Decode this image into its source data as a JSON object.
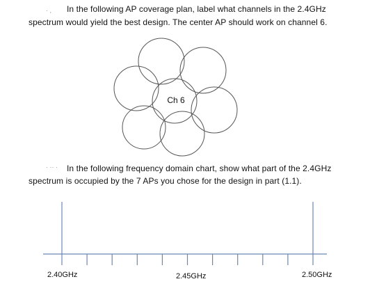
{
  "question1": {
    "marker": "·  ,",
    "line1": "In the following AP coverage plan, label what channels in the 2.4GHz",
    "line2": "spectrum would yield the best design.  The center AP should work on channel 6."
  },
  "coverage_plan": {
    "center_label": "Ch 6",
    "ap_count": 7
  },
  "question2": {
    "marker": "·  ·· ·",
    "line1": "In the following frequency domain chart, show what part of the 2.4GHz",
    "line2": "spectrum is occupied by the 7 APs you chose for the design in part (1.1)."
  },
  "frequency_chart": {
    "min_label": "2.40GHz",
    "mid_label": "2.45GHz",
    "max_label": "2.50GHz"
  }
}
